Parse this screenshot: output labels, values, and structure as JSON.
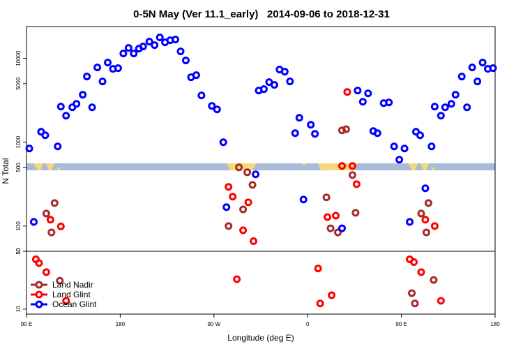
{
  "chart_data": [
    {
      "type": "scatter",
      "title": "0-5N May (Ver 11.1_early)   2014-09-06 to 2018-12-31",
      "y_label": "N Total",
      "log_y": true,
      "xlim": [
        90,
        540
      ],
      "ylim": [
        50,
        24000
      ],
      "yticks": [
        50,
        100,
        500,
        1000,
        5000,
        10000
      ],
      "series": [
        {
          "color": "#a52a2a",
          "x": [
            109,
            114,
            117,
            284,
            294,
            298,
            302,
            307,
            378,
            382,
            389,
            393,
            397,
            403,
            406,
            469,
            474,
            476
          ],
          "values": [
            141,
            84,
            188,
            100,
            501,
            158,
            438,
            310,
            220,
            94,
            84,
            1386,
            1430,
            406,
            144,
            141,
            84,
            188
          ]
        },
        {
          "color": "#ff0000",
          "x": [
            113,
            123,
            284,
            288,
            298,
            303,
            308,
            379,
            387,
            393,
            398,
            403,
            407,
            473,
            482
          ],
          "values": [
            119,
            99,
            293,
            224,
            89,
            192,
            66,
            128,
            133,
            521,
            3981,
            521,
            316,
            119,
            100
          ]
        },
        {
          "color": "#0000ff",
          "x": [
            92.7,
            97,
            104,
            108,
            120,
            123,
            128,
            134,
            138,
            144,
            148,
            153,
            158,
            163,
            168,
            173,
            178,
            183,
            188,
            193,
            198,
            202,
            208,
            213,
            218,
            223,
            228,
            233,
            238,
            243,
            248,
            253,
            258,
            268,
            273,
            279,
            282,
            310,
            313,
            318,
            323,
            328,
            333,
            338,
            343,
            348,
            352,
            356,
            363,
            367,
            393,
            408,
            413,
            418,
            423,
            427,
            433,
            438,
            443,
            448,
            453,
            458,
            464,
            468,
            473,
            479,
            482,
            488,
            492,
            498,
            502,
            508,
            513,
            518,
            523,
            528,
            533,
            538
          ],
          "values": [
            841,
            112,
            1334,
            1211,
            891,
            2661,
            2073,
            2610,
            2873,
            3687,
            6072,
            2610,
            7794,
            5309,
            8913,
            7499,
            7643,
            11440,
            13335,
            11440,
            13080,
            13860,
            15849,
            14400,
            17783,
            15550,
            16470,
            16790,
            12115,
            9441,
            5957,
            6310,
            3617,
            2713,
            2465,
            1000,
            168,
            414,
            4137,
            4300,
            5210,
            4826,
            7356,
            6945,
            5309,
            1284,
            1957,
            207,
            1616,
            1259,
            94,
            4137,
            3043,
            3831,
            1359,
            1284,
            2929,
            2985,
            891,
            619,
            841,
            112,
            1334,
            1211,
            282,
            891,
            2661,
            2073,
            2610,
            2873,
            3687,
            6072,
            2610,
            7794,
            5309,
            8913,
            7499,
            7643
          ]
        }
      ]
    },
    {
      "type": "scatter",
      "x_label": "Longitude (deg E)",
      "log_y": true,
      "xlim": [
        90,
        540
      ],
      "ylim": [
        8.7,
        50
      ],
      "yticks": [
        10,
        50
      ],
      "xticks": [
        {
          "value": 90,
          "label": "90 E"
        },
        180,
        {
          "value": 270,
          "label": "90 W"
        },
        {
          "value": 360,
          "label": "0"
        },
        {
          "value": 450,
          "label": "90 E"
        },
        {
          "value": 540,
          "label": "180"
        }
      ],
      "legend": "lower left",
      "series": [
        {
          "name": "Land Nadir",
          "color": "#a52a2a",
          "x": [
            122,
            460,
            463,
            481
          ],
          "values": [
            22,
            15.6,
            11.7,
            22.5
          ]
        },
        {
          "name": "Land Glint",
          "color": "#ff0000",
          "x": [
            99,
            102,
            109,
            128,
            292,
            370,
            372,
            383,
            458,
            462,
            469,
            488
          ],
          "values": [
            40,
            36,
            28,
            12.6,
            23,
            31,
            11.7,
            14.7,
            40,
            37,
            28,
            12.6
          ]
        },
        {
          "name": "Ocean Glint",
          "color": "#0000ff",
          "x": [],
          "values": []
        }
      ]
    }
  ]
}
